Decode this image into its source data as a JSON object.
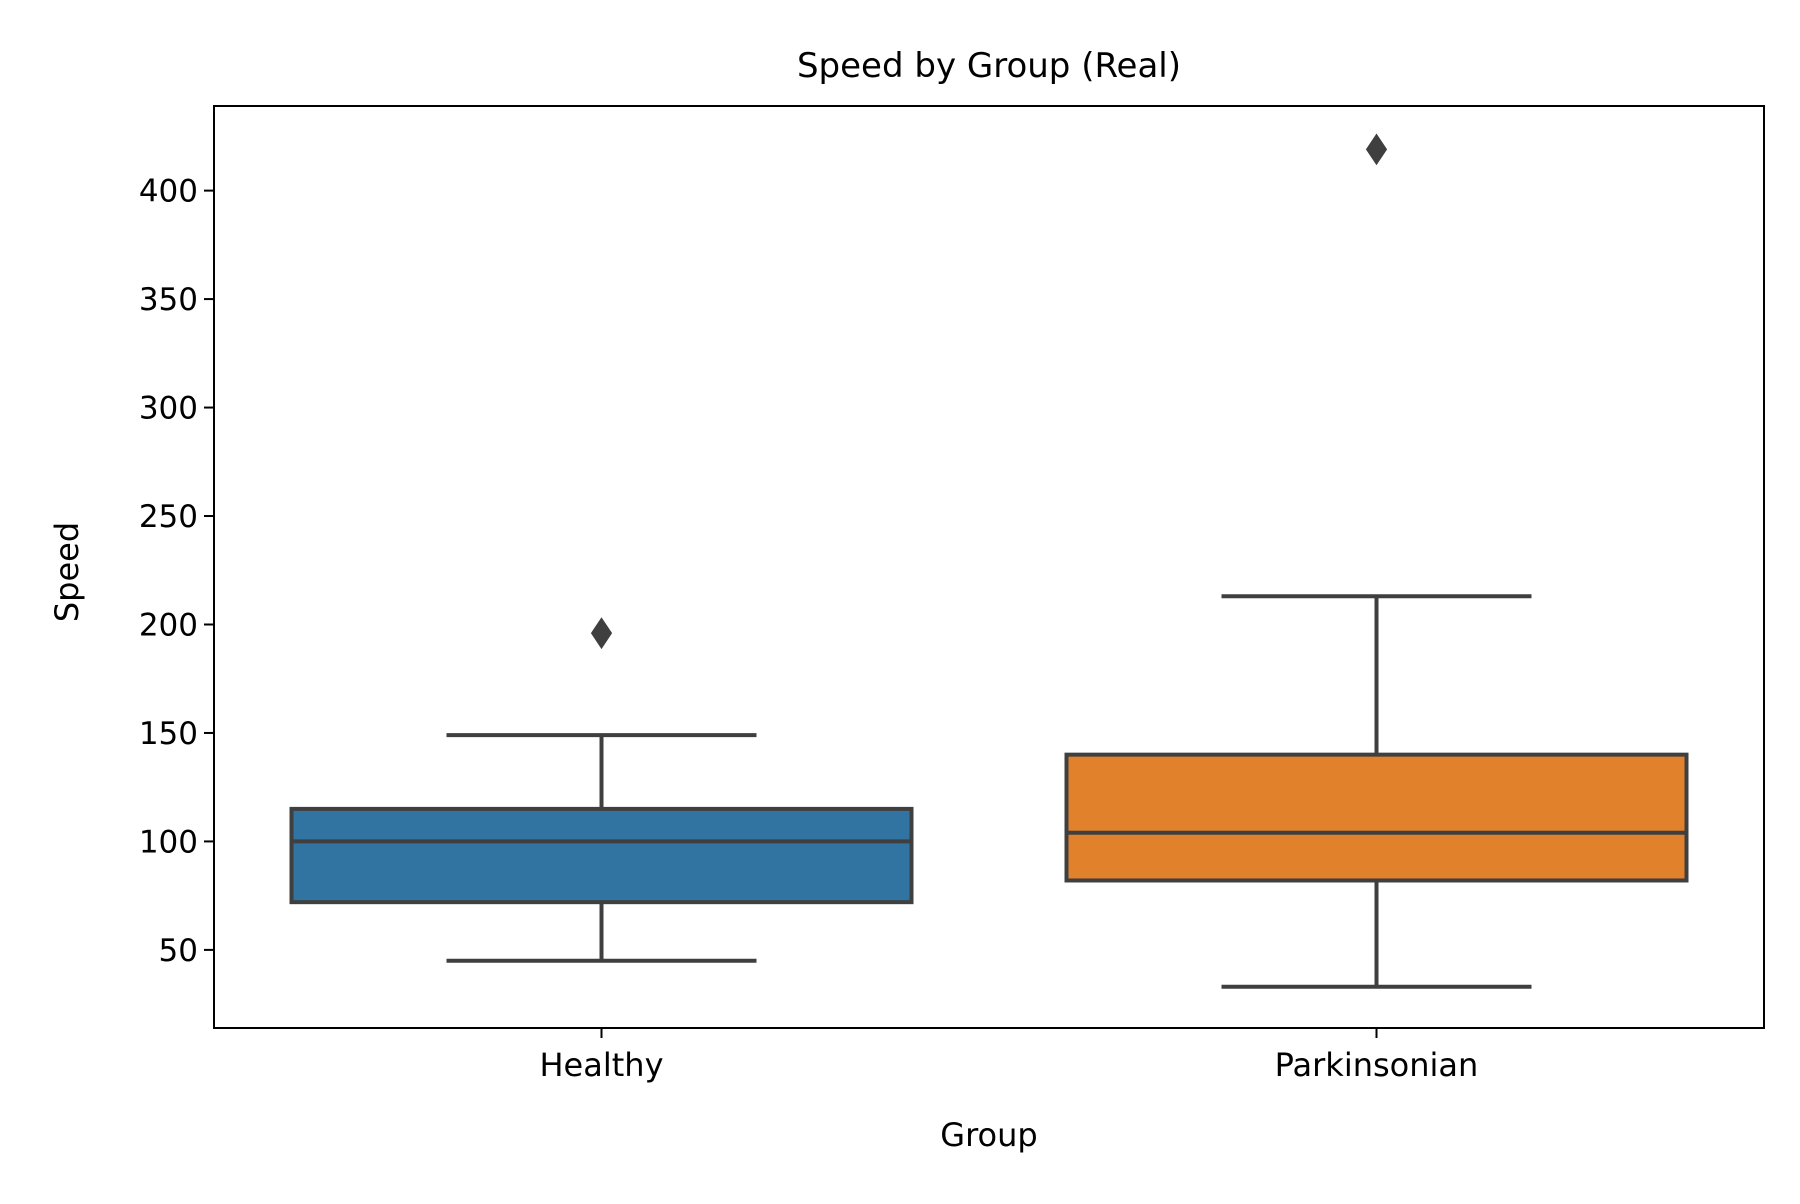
{
  "chart_data": {
    "type": "box",
    "title": "Speed by Group (Real)",
    "xlabel": "Group",
    "ylabel": "Speed",
    "ylim": [
      14,
      439
    ],
    "yticks": [
      50,
      100,
      150,
      200,
      250,
      300,
      350,
      400
    ],
    "grid": false,
    "categories": [
      "Healthy",
      "Parkinsonian"
    ],
    "boxes": [
      {
        "category": "Healthy",
        "whisker_low": 45,
        "q1": 72,
        "median": 100,
        "q3": 115,
        "whisker_high": 149,
        "outliers": [
          196
        ],
        "color": "#3274a1"
      },
      {
        "category": "Parkinsonian",
        "whisker_low": 33,
        "q1": 82,
        "median": 104,
        "q3": 140,
        "whisker_high": 213,
        "outliers": [
          419
        ],
        "color": "#e1812c"
      }
    ],
    "line_color": "#3f3f3f"
  }
}
